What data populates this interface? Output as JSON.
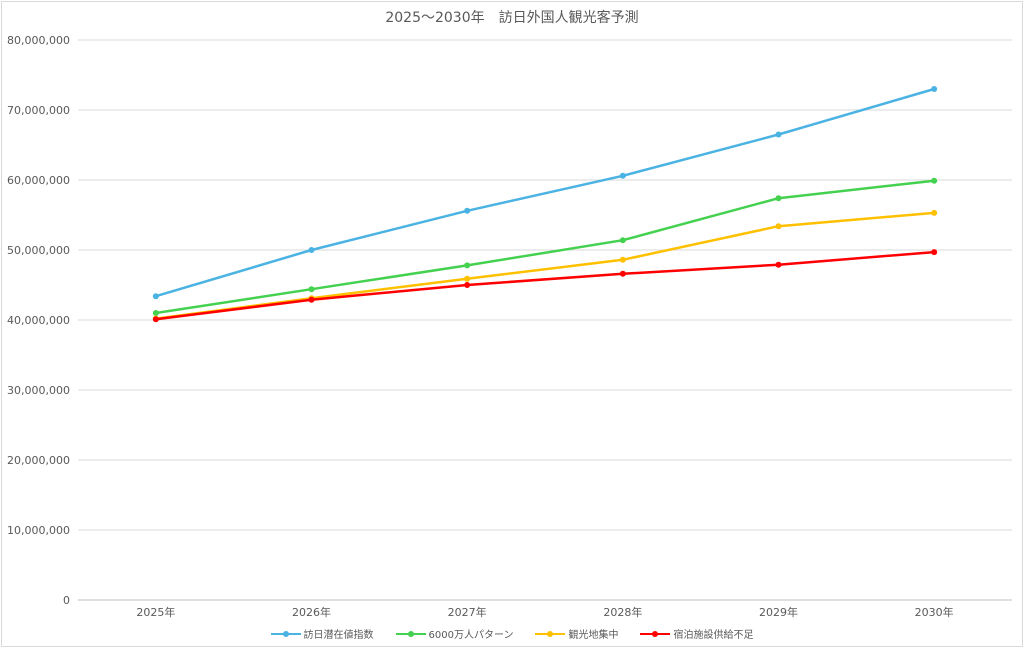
{
  "chart_data": {
    "type": "line",
    "title": "2025～2030年　訪日外国人観光客予測",
    "categories": [
      "2025年",
      "2026年",
      "2027年",
      "2028年",
      "2029年",
      "2030年"
    ],
    "ylim": [
      0,
      80000000
    ],
    "yticks": [
      0,
      10000000,
      20000000,
      30000000,
      40000000,
      50000000,
      60000000,
      70000000,
      80000000
    ],
    "ytick_labels": [
      "0",
      "10,000,000",
      "20,000,000",
      "30,000,000",
      "40,000,000",
      "50,000,000",
      "60,000,000",
      "70,000,000",
      "80,000,000"
    ],
    "grid": true,
    "legend_position": "bottom",
    "series": [
      {
        "name": "訪日潜在値指数",
        "color": "#4ab3e3",
        "values": [
          43400000,
          50000000,
          55600000,
          60600000,
          66500000,
          73000000
        ]
      },
      {
        "name": "6000万人パターン",
        "color": "#45d150",
        "values": [
          41000000,
          44400000,
          47800000,
          51400000,
          57400000,
          59900000
        ]
      },
      {
        "name": "観光地集中",
        "color": "#ffc000",
        "values": [
          40200000,
          43100000,
          45900000,
          48600000,
          53400000,
          55300000
        ]
      },
      {
        "name": "宿泊施設供給不足",
        "color": "#ff0000",
        "values": [
          40100000,
          42900000,
          45000000,
          46600000,
          47900000,
          49700000
        ]
      }
    ]
  }
}
